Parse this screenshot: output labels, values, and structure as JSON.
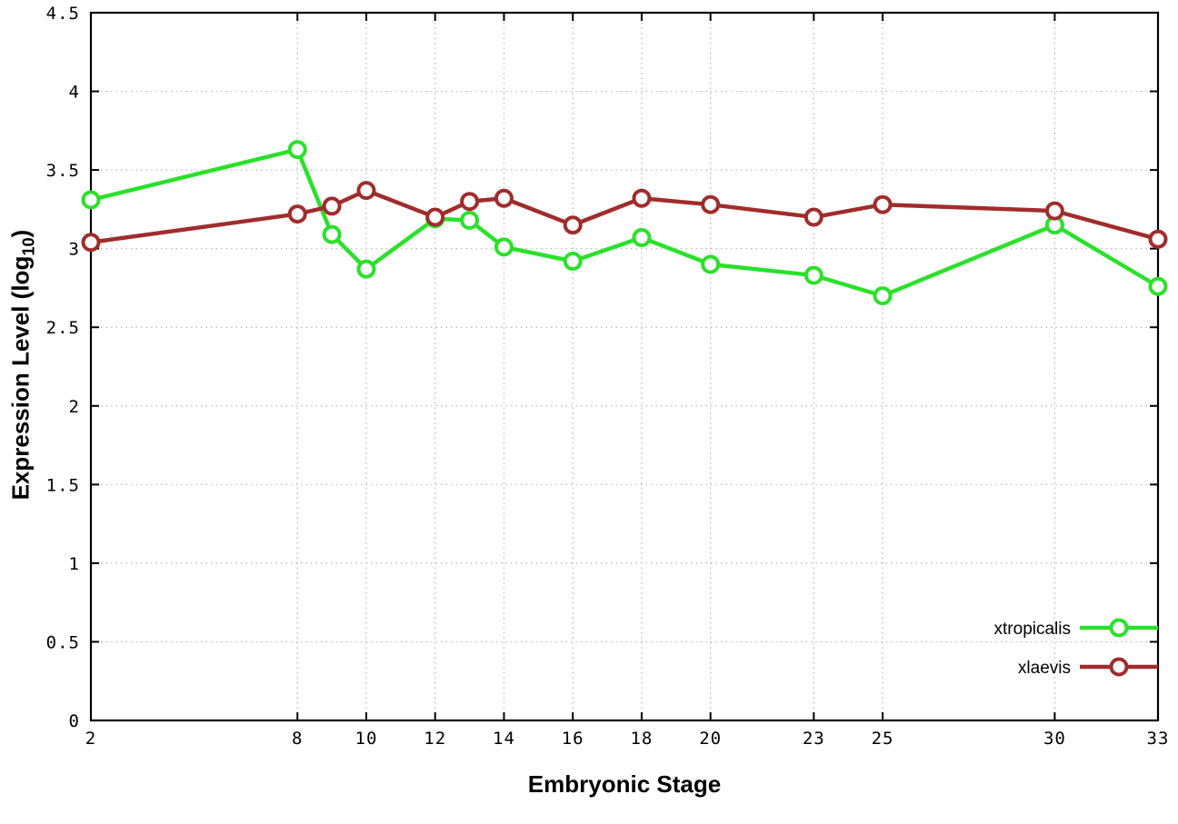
{
  "chart_data": {
    "type": "line",
    "title": "",
    "xlabel": "Embryonic Stage",
    "ylabel": "Expression Level (log10)",
    "ylabel_parts": {
      "prefix": "Expression Level (log",
      "sub": "10",
      "suffix": ")"
    },
    "x": [
      2,
      8,
      9,
      10,
      12,
      13,
      14,
      16,
      18,
      20,
      23,
      25,
      30,
      33
    ],
    "series": [
      {
        "name": "xtropicalis",
        "color": "#2be02b",
        "values": [
          3.31,
          3.63,
          3.09,
          2.87,
          3.19,
          3.18,
          3.01,
          2.92,
          3.07,
          2.9,
          2.83,
          2.7,
          3.15,
          2.76
        ]
      },
      {
        "name": "xlaevis",
        "color": "#a02c2c",
        "values": [
          3.04,
          3.22,
          3.27,
          3.37,
          3.2,
          3.3,
          3.32,
          3.15,
          3.32,
          3.28,
          3.2,
          3.28,
          3.24,
          3.06
        ]
      }
    ],
    "xlim": [
      2,
      33
    ],
    "ylim": [
      0,
      4.5
    ],
    "xticks": [
      2,
      8,
      10,
      12,
      14,
      16,
      18,
      20,
      23,
      25,
      30,
      33
    ],
    "yticks": [
      0,
      0.5,
      1,
      1.5,
      2,
      2.5,
      3,
      3.5,
      4,
      4.5
    ],
    "ytick_labels": [
      "0",
      "0.5",
      "1",
      "1.5",
      "2",
      "2.5",
      "3",
      "3.5",
      "4",
      "4.5"
    ],
    "grid": true,
    "legend_position": "bottom-right",
    "marker": "open-circle",
    "background": "#ffffff",
    "grid_color": "#b4b4b4",
    "axis_color": "#000000"
  }
}
